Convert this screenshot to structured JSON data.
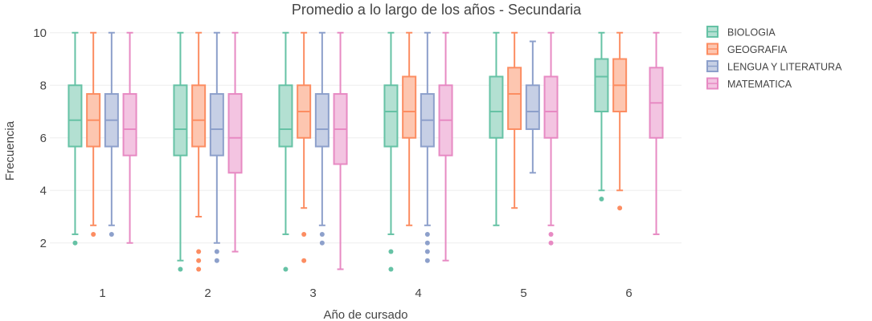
{
  "chart_data": {
    "type": "box",
    "title": "Promedio a lo largo de los años - Secundaria",
    "xlabel": "Año de cursado",
    "ylabel": "Frecuencia",
    "categories": [
      "1",
      "2",
      "3",
      "4",
      "5",
      "6"
    ],
    "ylim": [
      0.6,
      10.3
    ],
    "yticks": [
      2,
      4,
      6,
      8,
      10
    ],
    "legend_position": "top-right",
    "series": [
      {
        "name": "BIOLOGIA",
        "color": "#66c2a5",
        "fill": "#b3e0d2",
        "boxes": [
          {
            "cat": "1",
            "min": 2.33,
            "q1": 5.67,
            "median": 6.67,
            "q3": 8.0,
            "max": 10,
            "outliers": [
              2.0
            ]
          },
          {
            "cat": "2",
            "min": 1.33,
            "q1": 5.33,
            "median": 6.33,
            "q3": 8.0,
            "max": 10,
            "outliers": [
              1.0
            ]
          },
          {
            "cat": "3",
            "min": 2.33,
            "q1": 5.67,
            "median": 6.33,
            "q3": 8.0,
            "max": 10,
            "outliers": [
              1.0
            ]
          },
          {
            "cat": "4",
            "min": 2.33,
            "q1": 5.67,
            "median": 7.0,
            "q3": 8.0,
            "max": 10,
            "outliers": [
              1.67,
              1.0
            ]
          },
          {
            "cat": "5",
            "min": 2.67,
            "q1": 6.0,
            "median": 7.0,
            "q3": 8.33,
            "max": 10,
            "outliers": []
          },
          {
            "cat": "6",
            "min": 4.0,
            "q1": 7.0,
            "median": 8.33,
            "q3": 9.0,
            "max": 10,
            "outliers": [
              3.67
            ]
          }
        ]
      },
      {
        "name": "GEOGRAFIA",
        "color": "#fc8d62",
        "fill": "#fdc6b0",
        "boxes": [
          {
            "cat": "1",
            "min": 2.67,
            "q1": 5.67,
            "median": 6.67,
            "q3": 7.67,
            "max": 10,
            "outliers": [
              2.33
            ]
          },
          {
            "cat": "2",
            "min": 3.0,
            "q1": 5.67,
            "median": 6.67,
            "q3": 8.0,
            "max": 10,
            "outliers": [
              1.67,
              1.33,
              1.0
            ]
          },
          {
            "cat": "3",
            "min": 3.33,
            "q1": 6.0,
            "median": 7.0,
            "q3": 8.0,
            "max": 10,
            "outliers": [
              2.33,
              1.33
            ]
          },
          {
            "cat": "4",
            "min": 2.67,
            "q1": 6.0,
            "median": 7.0,
            "q3": 8.33,
            "max": 10,
            "outliers": []
          },
          {
            "cat": "5",
            "min": 3.33,
            "q1": 6.33,
            "median": 7.67,
            "q3": 8.67,
            "max": 10,
            "outliers": []
          },
          {
            "cat": "6",
            "min": 4.0,
            "q1": 7.0,
            "median": 8.0,
            "q3": 9.0,
            "max": 10,
            "outliers": [
              3.33
            ]
          }
        ]
      },
      {
        "name": "LENGUA Y LITERATURA",
        "color": "#8da0cb",
        "fill": "#c6cfe5",
        "boxes": [
          {
            "cat": "1",
            "min": 2.67,
            "q1": 5.67,
            "median": 6.67,
            "q3": 7.67,
            "max": 10,
            "outliers": [
              2.33
            ]
          },
          {
            "cat": "2",
            "min": 2.0,
            "q1": 5.33,
            "median": 6.33,
            "q3": 7.67,
            "max": 10,
            "outliers": [
              1.67,
              1.33
            ]
          },
          {
            "cat": "3",
            "min": 2.67,
            "q1": 5.67,
            "median": 6.33,
            "q3": 7.67,
            "max": 10,
            "outliers": [
              2.33,
              2.0
            ]
          },
          {
            "cat": "4",
            "min": 2.67,
            "q1": 5.67,
            "median": 6.67,
            "q3": 7.67,
            "max": 10,
            "outliers": [
              2.33,
              2.0,
              1.67,
              1.33
            ]
          },
          {
            "cat": "5",
            "min": 4.67,
            "q1": 6.33,
            "median": 7.0,
            "q3": 8.0,
            "max": 9.67,
            "outliers": []
          }
        ]
      },
      {
        "name": "MATEMATICA",
        "color": "#e78ac3",
        "fill": "#f3c4e1",
        "boxes": [
          {
            "cat": "1",
            "min": 2.0,
            "q1": 5.33,
            "median": 6.33,
            "q3": 7.67,
            "max": 10,
            "outliers": []
          },
          {
            "cat": "2",
            "min": 1.67,
            "q1": 4.67,
            "median": 6.0,
            "q3": 7.67,
            "max": 10,
            "outliers": []
          },
          {
            "cat": "3",
            "min": 1.0,
            "q1": 5.0,
            "median": 6.33,
            "q3": 7.67,
            "max": 10,
            "outliers": []
          },
          {
            "cat": "4",
            "min": 1.33,
            "q1": 5.33,
            "median": 6.67,
            "q3": 8.0,
            "max": 10,
            "outliers": []
          },
          {
            "cat": "5",
            "min": 2.67,
            "q1": 6.0,
            "median": 7.0,
            "q3": 8.33,
            "max": 10,
            "outliers": [
              2.33,
              2.0
            ]
          },
          {
            "cat": "6",
            "min": 2.33,
            "q1": 6.0,
            "median": 7.33,
            "q3": 8.67,
            "max": 10,
            "outliers": []
          }
        ]
      }
    ]
  }
}
